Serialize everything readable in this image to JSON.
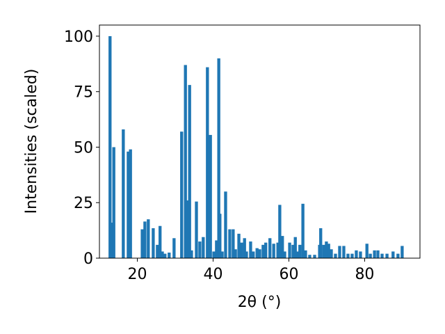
{
  "chart_data": {
    "type": "bar",
    "xlabel": "2θ (°)",
    "ylabel": "Intensities (scaled)",
    "color": "#1f77b4",
    "bar_width": 0.8,
    "xlim": [
      10,
      94.6
    ],
    "ylim": [
      0,
      105
    ],
    "xticks": [
      20,
      40,
      60,
      80
    ],
    "yticks": [
      0,
      25,
      50,
      75,
      100
    ],
    "x": [
      12.8,
      13.2,
      13.8,
      16.3,
      17.6,
      18.2,
      21.3,
      22.0,
      22.9,
      24.2,
      25.3,
      26.0,
      26.6,
      27.3,
      28.4,
      29.7,
      31.7,
      32.7,
      33.2,
      33.8,
      34.3,
      35.6,
      36.5,
      37.4,
      38.5,
      39.3,
      40.2,
      40.9,
      41.5,
      41.8,
      42.4,
      43.3,
      44.4,
      45.3,
      45.9,
      46.8,
      47.5,
      48.3,
      48.8,
      49.9,
      50.6,
      51.6,
      52.3,
      53.2,
      53.9,
      55.0,
      56.0,
      57.1,
      57.6,
      58.3,
      58.9,
      60.2,
      61.1,
      61.7,
      62.4,
      62.9,
      63.7,
      64.4,
      65.5,
      66.8,
      68.1,
      68.4,
      69.2,
      69.9,
      70.5,
      71.2,
      72.3,
      73.4,
      74.5,
      75.6,
      76.7,
      77.8,
      78.9,
      80.6,
      81.5,
      82.6,
      83.5,
      84.6,
      85.9,
      87.5,
      88.8,
      89.9
    ],
    "values": [
      100,
      16,
      50,
      58,
      48,
      49,
      13,
      16.5,
      17.5,
      13.5,
      6,
      14.5,
      3,
      2,
      2.5,
      9,
      57,
      87,
      26,
      78,
      3.5,
      25.5,
      7.5,
      9.5,
      86,
      55.5,
      3,
      8,
      90,
      20,
      3,
      30,
      13,
      13,
      4,
      11,
      7,
      9,
      3,
      7.5,
      3,
      4.5,
      4,
      6,
      7,
      9,
      6.5,
      7,
      24,
      10,
      3,
      7,
      6,
      9.5,
      3,
      6,
      24.5,
      3.5,
      1.5,
      1.5,
      6,
      13.5,
      6,
      7.5,
      6.5,
      4,
      2,
      5.5,
      5.5,
      2,
      2,
      3.5,
      3,
      6.5,
      2,
      3.5,
      3.5,
      2,
      2,
      3,
      2,
      5.5
    ]
  }
}
